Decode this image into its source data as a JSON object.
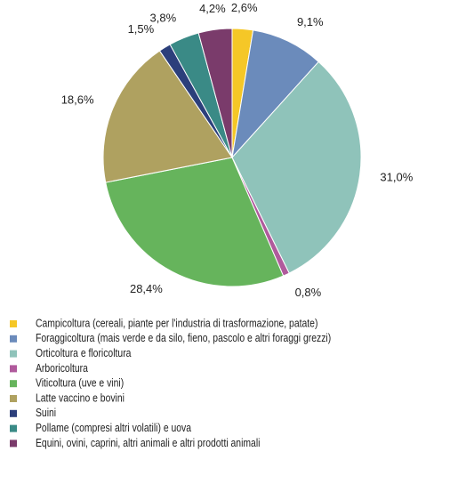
{
  "chart_data": {
    "type": "pie",
    "categories": [
      "Campicoltura (cereali, piante per l'industria di trasformazione, patate)",
      "Foraggicoltura (mais verde e da silo, fieno, pascolo e altri foraggi grezzi)",
      "Orticoltura e floricoltura",
      "Arboricoltura",
      "Viticoltura (uve e vini)",
      "Latte vaccino e bovini",
      "Suini",
      "Pollame (compresi altri volatili) e uova",
      "Equini, ovini, caprini, altri animali e altri prodotti animali"
    ],
    "values": [
      2.6,
      9.1,
      31.0,
      0.8,
      28.4,
      18.6,
      1.5,
      3.8,
      4.2
    ],
    "value_labels": [
      "2,6%",
      "9,1%",
      "31,0%",
      "0,8%",
      "28,4%",
      "18,6%",
      "1,5%",
      "3,8%",
      "4,2%"
    ],
    "colors": [
      "#f5c727",
      "#6b8bbb",
      "#8fc3ba",
      "#b05a9c",
      "#66b45c",
      "#afa160",
      "#2c3f7b",
      "#3a8a86",
      "#7a3b6b"
    ],
    "legend": "bottom"
  }
}
